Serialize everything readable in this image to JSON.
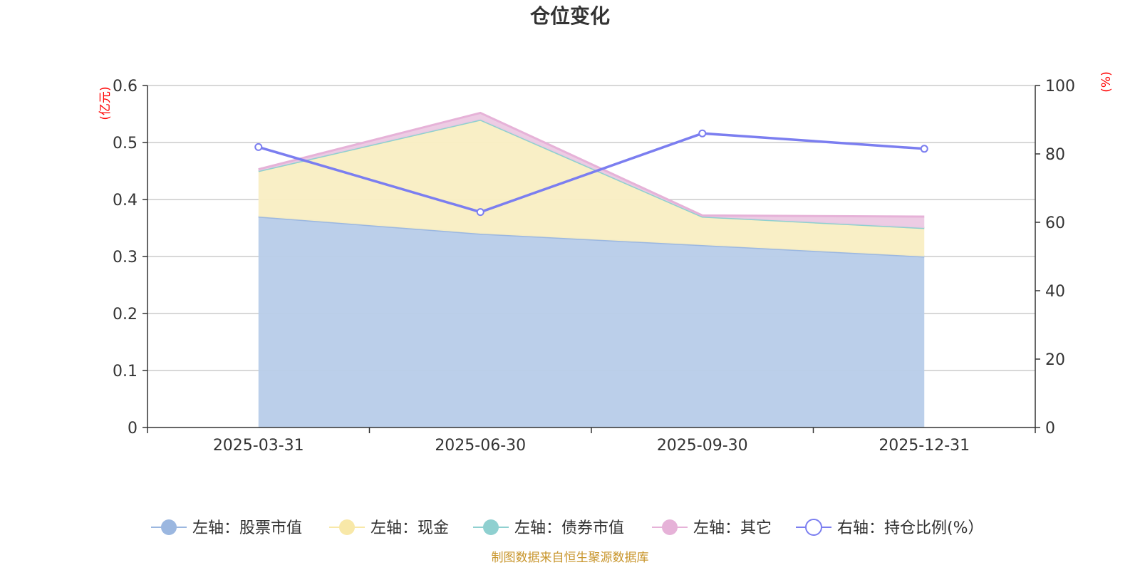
{
  "chart_data": {
    "type": "area",
    "title": "仓位变化",
    "left_unit": "(亿元)",
    "right_unit": "(%)",
    "categories": [
      "2025-03-31",
      "2025-06-30",
      "2025-09-30",
      "2025-12-31"
    ],
    "left_axis": {
      "ylim": [
        0,
        0.6
      ],
      "ticks": [
        "0",
        "0.1",
        "0.2",
        "0.3",
        "0.4",
        "0.5",
        "0.6"
      ]
    },
    "right_axis": {
      "ylim": [
        0,
        100
      ],
      "ticks": [
        "0",
        "20",
        "40",
        "60",
        "80",
        "100"
      ]
    },
    "stacked_series": [
      {
        "name": "左轴：股票市值",
        "axis": "left",
        "color": "#9bb7e0",
        "fill": "#b7cce9",
        "values": [
          0.37,
          0.34,
          0.32,
          0.3
        ]
      },
      {
        "name": "左轴：现金",
        "axis": "left",
        "color": "#f8e8a8",
        "fill": "#f9eec3",
        "values": [
          0.08,
          0.2,
          0.05,
          0.05
        ]
      },
      {
        "name": "左轴：债券市值",
        "axis": "left",
        "color": "#8fd0d0",
        "fill": "#aadcdc",
        "values": [
          0,
          0,
          0,
          0
        ]
      },
      {
        "name": "左轴：其它",
        "axis": "left",
        "color": "#e6b2d8",
        "fill": "#ecc9e3",
        "values": [
          0.003,
          0.012,
          0.002,
          0.02
        ]
      }
    ],
    "line_series": {
      "name": "右轴：持仓比例(%）",
      "axis": "right",
      "color": "#7b7ef0",
      "values": [
        82,
        63,
        86,
        81.5
      ]
    },
    "grid": true,
    "legend_position": "bottom"
  },
  "source_note": "制图数据来自恒生聚源数据库"
}
